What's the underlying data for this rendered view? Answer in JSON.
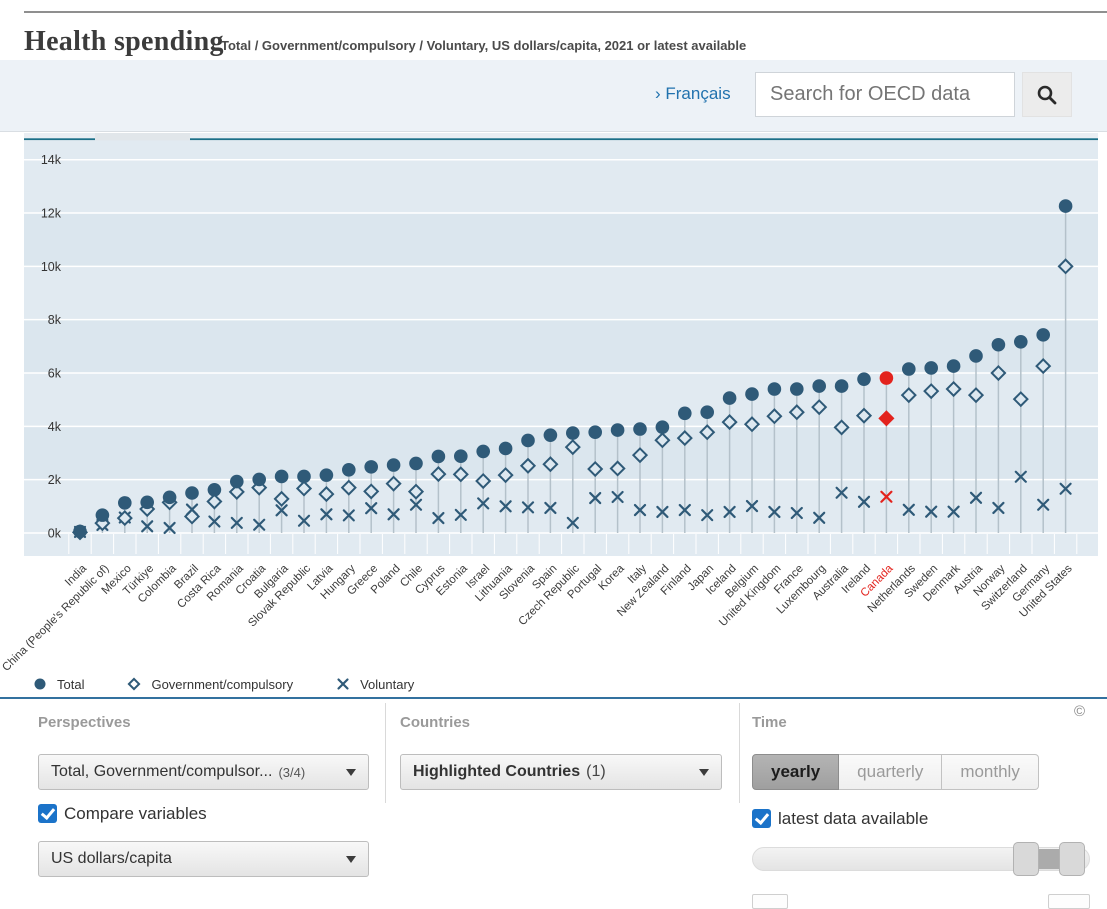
{
  "header": {
    "title": "Health spending",
    "subtitle": "Total / Government/compulsory / Voluntary, US dollars/capita, 2021 or latest available"
  },
  "topbar": {
    "language_link": "› Français",
    "search_placeholder": "Search for OECD data"
  },
  "legend": {
    "items": [
      {
        "label": "Total",
        "marker": "circle"
      },
      {
        "label": "Government/compulsory",
        "marker": "diamond"
      },
      {
        "label": "Voluntary",
        "marker": "x"
      }
    ]
  },
  "chart_data": {
    "type": "scatter",
    "title": "Health spending",
    "unit": "US dollars/capita",
    "time_label": "2021 or latest available",
    "ylim": [
      0,
      14000
    ],
    "ytick_labels": [
      "0k",
      "2k",
      "4k",
      "6k",
      "8k",
      "10k",
      "12k",
      "14k"
    ],
    "grid": true,
    "legend_position": "bottom",
    "highlighted": "Canada",
    "categories": [
      "India",
      "China (People's Republic of)",
      "Mexico",
      "Türkiye",
      "Colombia",
      "Brazil",
      "Costa Rica",
      "Romania",
      "Croatia",
      "Bulgaria",
      "Slovak Republic",
      "Latvia",
      "Hungary",
      "Greece",
      "Poland",
      "Chile",
      "Cyprus",
      "Estonia",
      "Israel",
      "Lithuania",
      "Slovenia",
      "Spain",
      "Czech Republic",
      "Portugal",
      "Korea",
      "Italy",
      "New Zealand",
      "Finland",
      "Japan",
      "Iceland",
      "Belgium",
      "United Kingdom",
      "France",
      "Luxembourg",
      "Australia",
      "Ireland",
      "Canada",
      "Netherlands",
      "Sweden",
      "Denmark",
      "Austria",
      "Norway",
      "Switzerland",
      "Germany",
      "United States"
    ],
    "series": [
      {
        "name": "Total",
        "marker": "circle",
        "values": [
          60,
          670,
          1130,
          1150,
          1340,
          1500,
          1620,
          1930,
          2010,
          2120,
          2120,
          2170,
          2370,
          2480,
          2550,
          2610,
          2870,
          2880,
          3060,
          3170,
          3470,
          3670,
          3750,
          3780,
          3860,
          3900,
          3970,
          4490,
          4530,
          5060,
          5210,
          5400,
          5400,
          5510,
          5510,
          5770,
          5810,
          6150,
          6190,
          6260,
          6640,
          7060,
          7170,
          7430,
          12260
        ]
      },
      {
        "name": "Government/compulsory",
        "marker": "diamond",
        "values": [
          25,
          370,
          560,
          900,
          1150,
          620,
          1180,
          1540,
          1700,
          1280,
          1670,
          1460,
          1700,
          1560,
          1850,
          1550,
          2210,
          2200,
          1950,
          2170,
          2520,
          2580,
          3220,
          2400,
          2420,
          2920,
          3480,
          3560,
          3780,
          4160,
          4080,
          4380,
          4530,
          4720,
          3960,
          4400,
          4300,
          5170,
          5320,
          5400,
          5170,
          6000,
          5020,
          6260,
          10000
        ]
      },
      {
        "name": "Voluntary",
        "marker": "x",
        "values": [
          40,
          300,
          580,
          250,
          190,
          880,
          430,
          380,
          310,
          850,
          460,
          700,
          660,
          930,
          700,
          1060,
          560,
          680,
          1110,
          1000,
          960,
          940,
          380,
          1310,
          1350,
          860,
          790,
          860,
          670,
          790,
          1010,
          790,
          750,
          570,
          1510,
          1170,
          1360,
          870,
          800,
          800,
          1320,
          940,
          2110,
          1060,
          1660
        ]
      }
    ]
  },
  "panels": {
    "perspectives": {
      "title": "Perspectives",
      "variable_dropdown": {
        "value": "Total, Government/compulsor...",
        "count": "(3/4)"
      },
      "compare_checkbox": {
        "label": "Compare variables",
        "checked": true
      },
      "unit_dropdown": {
        "value": "US dollars/capita"
      }
    },
    "countries": {
      "title": "Countries",
      "dropdown": {
        "value": "Highlighted Countries",
        "count": "(1)"
      }
    },
    "time": {
      "title": "Time",
      "frequency_buttons": [
        "yearly",
        "quarterly",
        "monthly"
      ],
      "active_frequency": "yearly",
      "latest_checkbox": {
        "label": "latest data available",
        "checked": true
      },
      "copyright": "©"
    }
  },
  "colors": {
    "marker": "#2f5a78",
    "highlight": "#e3231d",
    "chart_bg": "#dbe6ee",
    "chart_band_light": "#e1eaf1",
    "gridline": "#ffffff",
    "connector": "#b4c1ca",
    "accent_blue": "#33719f",
    "checkbox_blue": "#1b73c9",
    "link_blue": "#2172ae"
  }
}
